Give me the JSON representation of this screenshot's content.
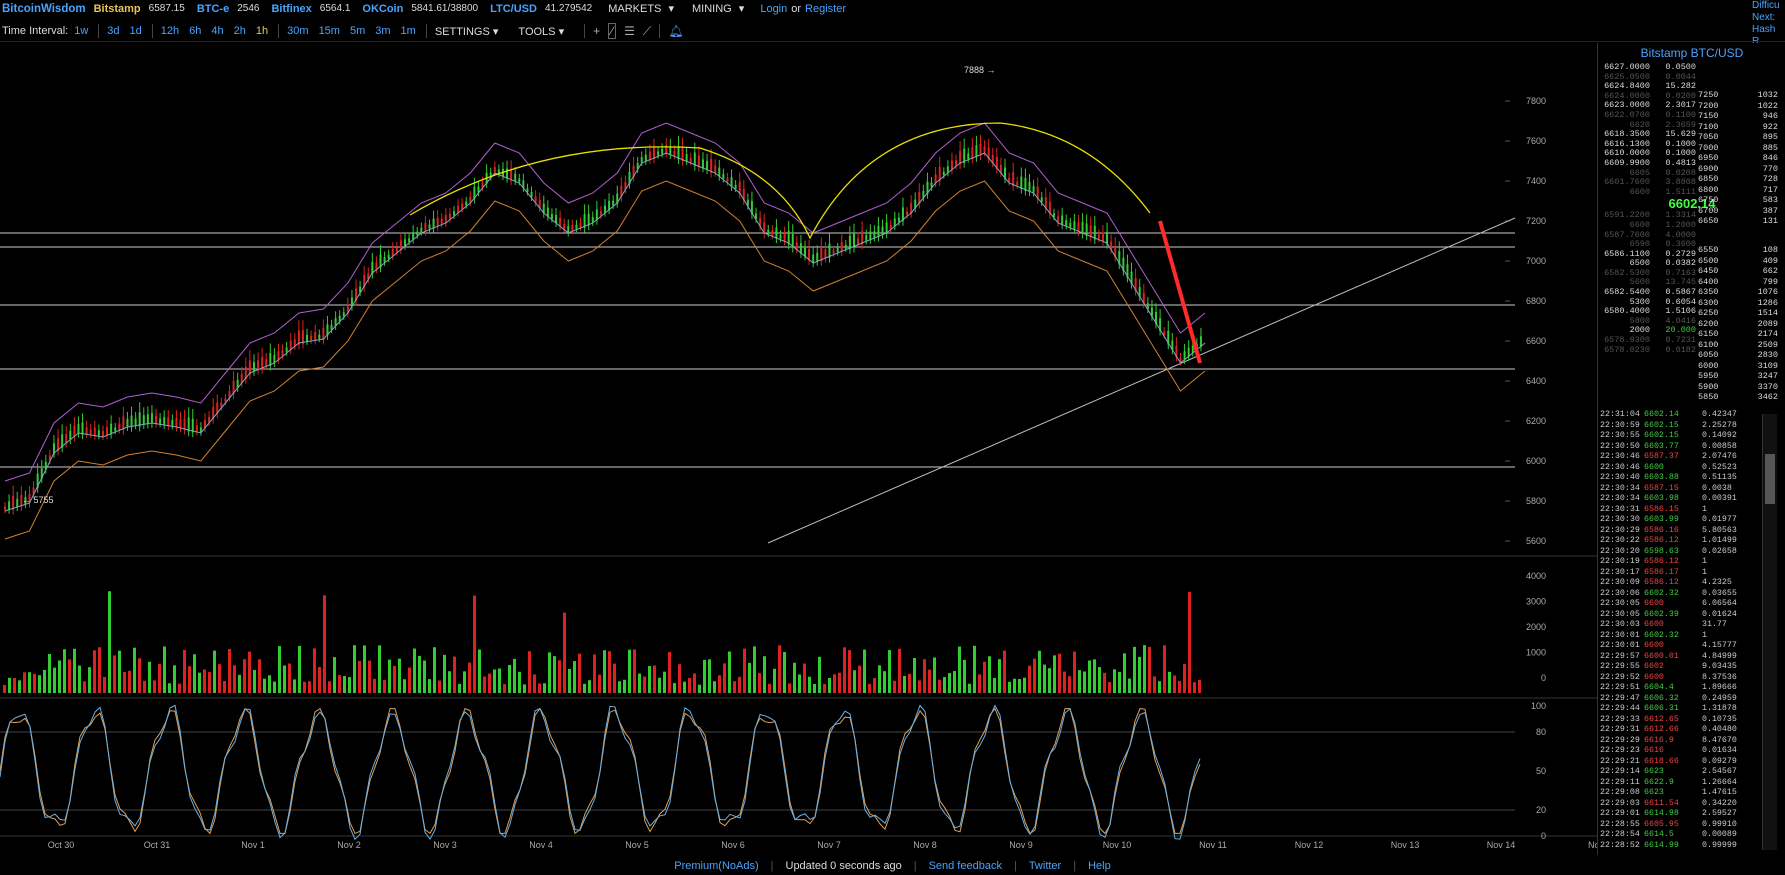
{
  "topbar": {
    "brand": "BitcoinWisdom",
    "tickers": [
      {
        "name": "Bitstamp",
        "price": "6587.15",
        "color": "#e6c35a"
      },
      {
        "name": "BTC-e",
        "price": "2546",
        "color": "#4aa3ff"
      },
      {
        "name": "Bitfinex",
        "price": "6564.1",
        "color": "#4aa3ff"
      },
      {
        "name": "OKCoin",
        "price": "5841.61/38800",
        "color": "#4aa3ff"
      },
      {
        "name": "LTC/USD",
        "price": "41.279542",
        "color": "#4aa3ff"
      }
    ],
    "markets": "MARKETS",
    "mining": "MINING",
    "login": "Login",
    "or": "or",
    "register": "Register",
    "right_lines": [
      "Difficu",
      "Next:",
      "Hash R"
    ]
  },
  "toolbar": {
    "time_interval_label": "Time Interval:",
    "intervals": [
      "1w",
      "3d",
      "1d",
      "12h",
      "6h",
      "4h",
      "2h",
      "1h",
      "30m",
      "15m",
      "5m",
      "3m",
      "1m"
    ],
    "active_interval": "1h",
    "settings": "SETTINGS",
    "tools": "TOOLS"
  },
  "chart_data": {
    "type": "line",
    "title": "",
    "price_axis": [
      7800,
      7600,
      7400,
      7200,
      7000,
      6800,
      6600,
      6400,
      6200,
      6000,
      5800,
      5600
    ],
    "volume_axis": [
      4000,
      3000,
      2000,
      1000,
      0
    ],
    "stoch_axis": [
      100,
      80,
      50,
      20,
      0
    ],
    "x_labels": [
      "Oct 30",
      "Oct 31",
      "Nov 1",
      "Nov 2",
      "Nov 3",
      "Nov 4",
      "Nov 5",
      "Nov 6",
      "Nov 7",
      "Nov 8",
      "Nov 9",
      "Nov 10",
      "Nov 11",
      "Nov 12",
      "Nov 13",
      "Nov 14",
      "Now"
    ],
    "high_label": "7888",
    "low_label": "5755",
    "last_price": "6602.14",
    "horizontal_lines": [
      7140,
      7070,
      6780,
      6460,
      5970
    ],
    "close_series": [
      5760,
      5800,
      6050,
      6150,
      6130,
      6180,
      6200,
      6180,
      6150,
      6300,
      6450,
      6500,
      6600,
      6620,
      6750,
      6950,
      7050,
      7150,
      7200,
      7300,
      7450,
      7400,
      7250,
      7150,
      7200,
      7300,
      7500,
      7550,
      7500,
      7450,
      7350,
      7150,
      7100,
      7000,
      7050,
      7100,
      7150,
      7250,
      7400,
      7500,
      7550,
      7400,
      7350,
      7200,
      7150,
      7100,
      6900,
      6700,
      6500,
      6600
    ]
  },
  "orderbook": {
    "title": "Bitstamp BTC/USD",
    "asks": [
      {
        "p": "6627.0000",
        "a": "0.0500",
        "dim": false
      },
      {
        "p": "6625.0500",
        "a": "0.0044",
        "dim": true
      },
      {
        "p": "6624.8400",
        "a": "15.282",
        "dim": false
      },
      {
        "p": "6624.0000",
        "a": "0.0200",
        "dim": true
      },
      {
        "p": "6623.0000",
        "a": "2.3017",
        "dim": false
      },
      {
        "p": "6622.0700",
        "a": "0.1100",
        "dim": true
      },
      {
        "p": "6620",
        "a": "2.3659",
        "dim": true
      },
      {
        "p": "6618.3500",
        "a": "15.629",
        "dim": false
      },
      {
        "p": "6616.1300",
        "a": "0.1000",
        "dim": false
      },
      {
        "p": "6610.0000",
        "a": "0.1000",
        "dim": false
      },
      {
        "p": "6609.9900",
        "a": "0.4813",
        "dim": false
      },
      {
        "p": "6605",
        "a": "0.0208",
        "dim": true
      },
      {
        "p": "6601.7600",
        "a": "3.8808",
        "dim": true
      },
      {
        "p": "6600",
        "a": "1.5111",
        "dim": true
      }
    ],
    "last": "6602.14",
    "bids": [
      {
        "p": "6591.2200",
        "a": "1.3314",
        "dim": true
      },
      {
        "p": "6600",
        "a": "1.2000",
        "dim": true
      },
      {
        "p": "6587.7600",
        "a": "4.0000",
        "dim": true
      },
      {
        "p": "6590",
        "a": "0.3600",
        "dim": true
      },
      {
        "p": "6586.1100",
        "a": "0.2729",
        "dim": false
      },
      {
        "p": "6500",
        "a": "0.0382",
        "dim": false
      },
      {
        "p": "6582.5300",
        "a": "0.7163",
        "dim": true
      },
      {
        "p": "5600",
        "a": "13.745",
        "dim": true
      },
      {
        "p": "6582.5400",
        "a": "0.5867",
        "dim": false
      },
      {
        "p": "5300",
        "a": "0.6054",
        "dim": false
      },
      {
        "p": "6580.4000",
        "a": "1.5106",
        "dim": false
      },
      {
        "p": "5800",
        "a": "4.0416",
        "dim": true
      },
      {
        "p": "2000",
        "a": "20.000",
        "dim": false
      },
      {
        "p": "6578.9300",
        "a": "0.7231",
        "dim": true
      },
      {
        "p": "6578.0230",
        "a": "0.0182",
        "dim": true
      }
    ],
    "ask_depth": [
      [
        "7250",
        "1032"
      ],
      [
        "7200",
        "1022"
      ],
      [
        "7150",
        "946"
      ],
      [
        "7100",
        "922"
      ],
      [
        "7050",
        "895"
      ],
      [
        "7000",
        "885"
      ],
      [
        "6950",
        "846"
      ],
      [
        "6900",
        "770"
      ],
      [
        "6850",
        "728"
      ],
      [
        "6800",
        "717"
      ],
      [
        "6750",
        "583"
      ],
      [
        "6700",
        "387"
      ],
      [
        "6650",
        "131"
      ]
    ],
    "bid_depth": [
      [
        "6550",
        "108"
      ],
      [
        "6500",
        "409"
      ],
      [
        "6450",
        "662"
      ],
      [
        "6400",
        "799"
      ],
      [
        "6350",
        "1076"
      ],
      [
        "6300",
        "1286"
      ],
      [
        "6250",
        "1514"
      ],
      [
        "6200",
        "2089"
      ],
      [
        "6150",
        "2174"
      ],
      [
        "6100",
        "2509"
      ],
      [
        "6050",
        "2830"
      ],
      [
        "6000",
        "3109"
      ],
      [
        "5950",
        "3247"
      ],
      [
        "5900",
        "3370"
      ],
      [
        "5850",
        "3462"
      ]
    ]
  },
  "trades": [
    [
      "22:31:04",
      "6602.14",
      "0.42347",
      "up"
    ],
    [
      "22:30:59",
      "6602.15",
      "2.25278",
      "up"
    ],
    [
      "22:30:55",
      "6602.15",
      "0.14092",
      "up"
    ],
    [
      "22:30:50",
      "6603.77",
      "0.00858",
      "up"
    ],
    [
      "22:30:46",
      "6587.37",
      "2.07476",
      "dn"
    ],
    [
      "22:30:46",
      "6600",
      "0.52523",
      "up"
    ],
    [
      "22:30:40",
      "6603.88",
      "0.51135",
      "up"
    ],
    [
      "22:30:34",
      "6587.15",
      "0.0038",
      "dn"
    ],
    [
      "22:30:34",
      "6603.98",
      "0.00391",
      "up"
    ],
    [
      "22:30:31",
      "6586.15",
      "1",
      "dn"
    ],
    [
      "22:30:30",
      "6603.99",
      "0.01977",
      "up"
    ],
    [
      "22:30:29",
      "6586.16",
      "5.80563",
      "dn"
    ],
    [
      "22:30:22",
      "6586.12",
      "1.01499",
      "dn"
    ],
    [
      "22:30:20",
      "6598.63",
      "0.02658",
      "up"
    ],
    [
      "22:30:19",
      "6586.12",
      "1",
      "dn"
    ],
    [
      "22:30:17",
      "6586.17",
      "1",
      "dn"
    ],
    [
      "22:30:09",
      "6586.12",
      "4.2325",
      "dn"
    ],
    [
      "22:30:06",
      "6602.32",
      "0.03655",
      "up"
    ],
    [
      "22:30:05",
      "6600",
      "6.06564",
      "dn"
    ],
    [
      "22:30:05",
      "6602.39",
      "0.01624",
      "up"
    ],
    [
      "22:30:03",
      "6600",
      "31.77",
      "dn"
    ],
    [
      "22:30:01",
      "6602.32",
      "1",
      "up"
    ],
    [
      "22:30:01",
      "6600",
      "4.15777",
      "dn"
    ],
    [
      "22:29:57",
      "6600.01",
      "4.84999",
      "dn"
    ],
    [
      "22:29:55",
      "6602",
      "9.03435",
      "dn"
    ],
    [
      "22:29:52",
      "6600",
      "8.37536",
      "dn"
    ],
    [
      "22:29:51",
      "6604.4",
      "1.89666",
      "up"
    ],
    [
      "22:29:47",
      "6606.32",
      "0.24959",
      "up"
    ],
    [
      "22:29:44",
      "6606.31",
      "1.31878",
      "up"
    ],
    [
      "22:29:33",
      "6612.65",
      "0.10735",
      "dn"
    ],
    [
      "22:29:31",
      "6612.66",
      "0.40480",
      "dn"
    ],
    [
      "22:29:29",
      "6616.9",
      "8.47670",
      "dn"
    ],
    [
      "22:29:23",
      "6616",
      "0.01634",
      "dn"
    ],
    [
      "22:29:21",
      "6618.66",
      "0.09279",
      "dn"
    ],
    [
      "22:29:14",
      "6623",
      "2.54567",
      "up"
    ],
    [
      "22:29:11",
      "6622.9",
      "1.26664",
      "up"
    ],
    [
      "22:29:08",
      "6623",
      "1.47615",
      "up"
    ],
    [
      "22:29:03",
      "6611.54",
      "0.34220",
      "dn"
    ],
    [
      "22:29:01",
      "6614.98",
      "2.59527",
      "up"
    ],
    [
      "22:28:55",
      "6605.95",
      "0.99910",
      "dn"
    ],
    [
      "22:28:54",
      "6614.5",
      "0.00089",
      "up"
    ],
    [
      "22:28:52",
      "6614.99",
      "0.99999",
      "up"
    ]
  ],
  "footer": {
    "premium": "Premium(NoAds)",
    "updated": "Updated 0 seconds ago",
    "feedback": "Send feedback",
    "twitter": "Twitter",
    "help": "Help"
  }
}
